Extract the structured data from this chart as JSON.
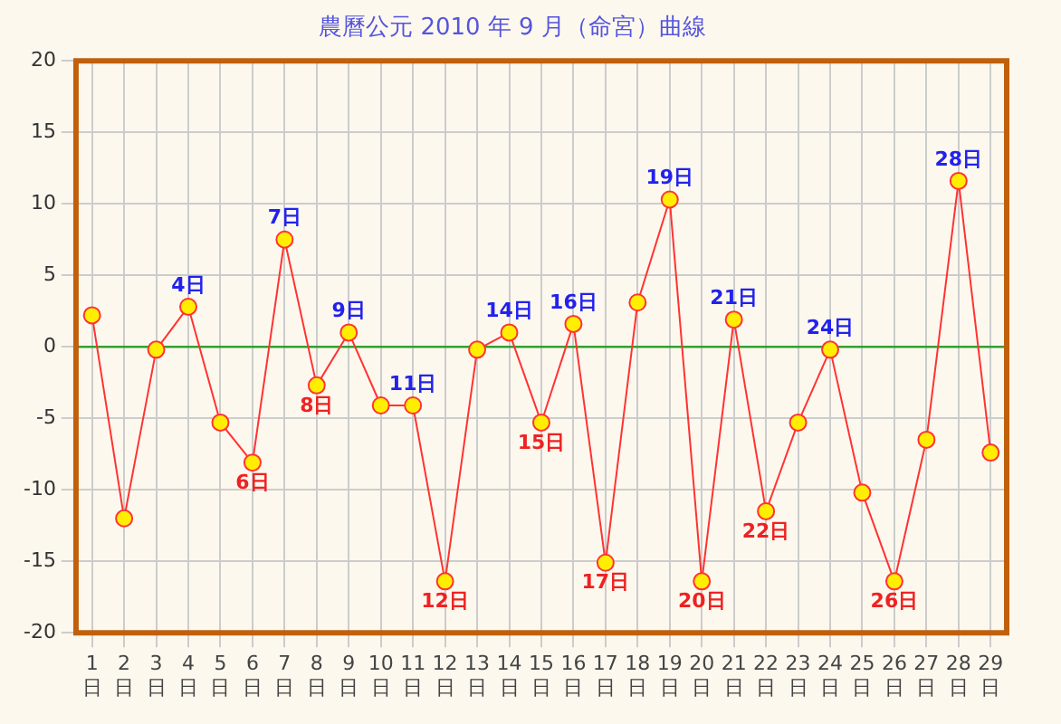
{
  "chart_data": {
    "type": "line",
    "title": "農曆公元 2010 年 9 月（命宮）曲線",
    "categories": [
      "1日",
      "2日",
      "3日",
      "4日",
      "5日",
      "6日",
      "7日",
      "8日",
      "9日",
      "10日",
      "11日",
      "12日",
      "13日",
      "14日",
      "15日",
      "16日",
      "17日",
      "18日",
      "19日",
      "20日",
      "21日",
      "22日",
      "23日",
      "24日",
      "25日",
      "26日",
      "27日",
      "28日",
      "29日"
    ],
    "series": [
      {
        "color": "#ff3333",
        "values": [
          2.2,
          -12,
          -0.2,
          2.8,
          -5.3,
          -8.1,
          7.5,
          -2.7,
          1.0,
          -4.1,
          -4.1,
          -16.4,
          -0.2,
          1.0,
          -5.3,
          1.6,
          -15.1,
          3.1,
          10.3,
          -16.4,
          1.9,
          -11.5,
          -5.3,
          -0.2,
          -10.2,
          -16.4,
          -6.5,
          11.6,
          -7.4
        ]
      }
    ],
    "ylim": [
      -20,
      20
    ],
    "yticks": [
      -20,
      -15,
      -10,
      -5,
      0,
      5,
      10,
      15,
      20
    ],
    "ref_lines": [
      {
        "axis": "y",
        "value": 0,
        "color": "#33a033"
      }
    ],
    "annotations": [
      {
        "text": "4日",
        "x": "4日",
        "y": 2.8
      },
      {
        "text": "6日",
        "x": "6日",
        "y": -8.1
      },
      {
        "text": "7日",
        "x": "7日",
        "y": 7.5
      },
      {
        "text": "8日",
        "x": "8日",
        "y": -2.7
      },
      {
        "text": "9日",
        "x": "9日",
        "y": 1.0
      },
      {
        "text": "11日",
        "x": "11日",
        "y": -4.1
      },
      {
        "text": "12日",
        "x": "12日",
        "y": -16.4
      },
      {
        "text": "14日",
        "x": "14日",
        "y": 1.0
      },
      {
        "text": "15日",
        "x": "15日",
        "y": -5.3
      },
      {
        "text": "16日",
        "x": "16日",
        "y": 1.6
      },
      {
        "text": "17日",
        "x": "17日",
        "y": -15.1
      },
      {
        "text": "19日",
        "x": "19日",
        "y": 10.3
      },
      {
        "text": "20日",
        "x": "20日",
        "y": -16.4
      },
      {
        "text": "21日",
        "x": "21日",
        "y": 1.9
      },
      {
        "text": "22日",
        "x": "22日",
        "y": -11.5
      },
      {
        "text": "24日",
        "x": "24日",
        "y": -0.2
      },
      {
        "text": "26日",
        "x": "26日",
        "y": -16.4
      },
      {
        "text": "28日",
        "x": "28日",
        "y": 11.6
      }
    ],
    "grid": true,
    "marker": "circle",
    "legend": false
  }
}
